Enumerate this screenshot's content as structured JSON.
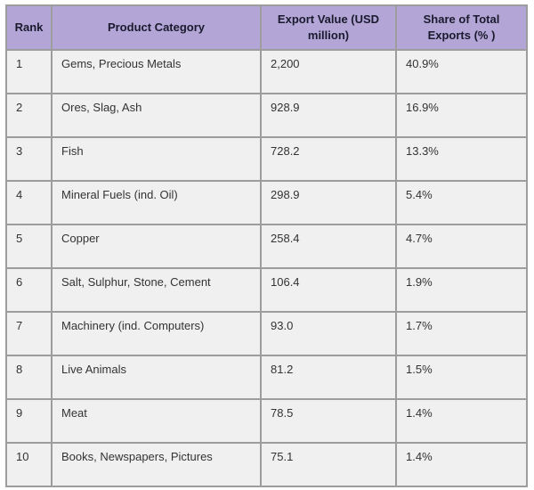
{
  "colors": {
    "header_bg": "#b3a6d6",
    "header_text": "#1a1a2e",
    "cell_bg": "#f0f0f0",
    "cell_text": "#333333",
    "border": "#9d9d9d",
    "page_bg": "#ffffff"
  },
  "chart_data": {
    "type": "table",
    "title": "",
    "columns": [
      "Rank",
      "Product Category",
      "Export Value (USD million)",
      "Share of Total Exports (% )"
    ],
    "rows": [
      [
        "1",
        "Gems, Precious Metals",
        "2,200",
        "40.9%"
      ],
      [
        "2",
        "Ores, Slag, Ash",
        "928.9",
        "16.9%"
      ],
      [
        "3",
        "Fish",
        "728.2",
        "13.3%"
      ],
      [
        "4",
        "Mineral Fuels (ind. Oil)",
        "298.9",
        "5.4%"
      ],
      [
        "5",
        "Copper",
        "258.4",
        "4.7%"
      ],
      [
        "6",
        "Salt, Sulphur, Stone, Cement",
        "106.4",
        "1.9%"
      ],
      [
        "7",
        "Machinery (ind. Computers)",
        "93.0",
        "1.7%"
      ],
      [
        "8",
        "Live Animals",
        "81.2",
        "1.5%"
      ],
      [
        "9",
        "Meat",
        "78.5",
        "1.4%"
      ],
      [
        "10",
        "Books, Newspapers, Pictures",
        "75.1",
        "1.4%"
      ]
    ]
  }
}
